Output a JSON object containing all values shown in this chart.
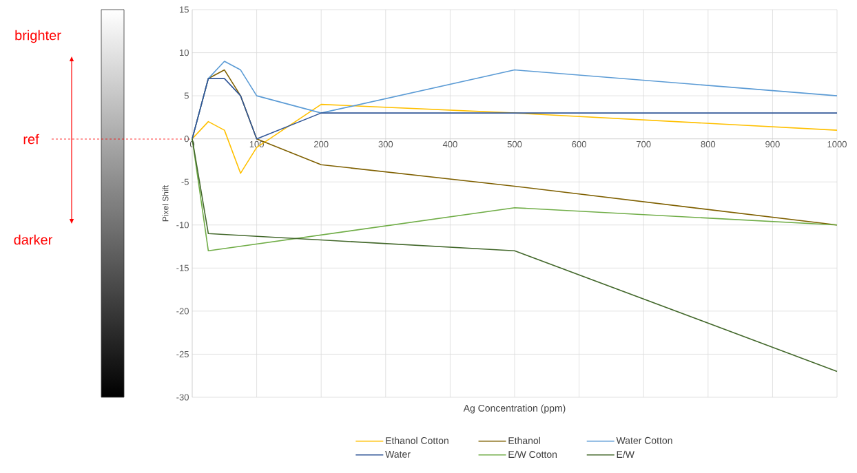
{
  "chart_data": {
    "type": "line",
    "xlabel": "Ag Concentration (ppm)",
    "ylabel": "Pixel Shift",
    "x": [
      0,
      25,
      50,
      75,
      100,
      200,
      500,
      1000
    ],
    "series": [
      {
        "name": "Ethanol Cotton",
        "color": "#ffc000",
        "values": [
          0,
          2,
          1,
          -4,
          -1,
          4,
          3,
          1
        ]
      },
      {
        "name": "Ethanol",
        "color": "#7f6000",
        "values": [
          0,
          7,
          8,
          5,
          0,
          -3,
          -5.5,
          -10
        ]
      },
      {
        "name": "Water Cotton",
        "color": "#5b9bd5",
        "values": [
          0,
          7,
          9,
          8,
          5,
          3,
          8,
          5
        ]
      },
      {
        "name": "Water",
        "color": "#2f5597",
        "values": [
          0,
          7,
          7,
          5,
          0,
          3,
          3,
          3
        ]
      },
      {
        "name": "E/W Cotton",
        "color": "#70ad47",
        "x": [
          0,
          25,
          500,
          1000
        ],
        "values": [
          0,
          -13,
          -8,
          -10
        ]
      },
      {
        "name": "E/W",
        "color": "#43682b",
        "x": [
          0,
          25,
          500,
          1000
        ],
        "values": [
          0,
          -11,
          -13,
          -27
        ]
      }
    ],
    "xlim": [
      0,
      1000
    ],
    "xticks": [
      0,
      100,
      200,
      300,
      400,
      500,
      600,
      700,
      800,
      900,
      1000
    ],
    "ylim": [
      -30,
      15
    ],
    "yticks": [
      -30,
      -25,
      -20,
      -15,
      -10,
      -5,
      0,
      5,
      10,
      15
    ],
    "grid": true,
    "legend": "bottom",
    "annotations": [
      "brighter",
      "ref",
      "darker"
    ]
  }
}
